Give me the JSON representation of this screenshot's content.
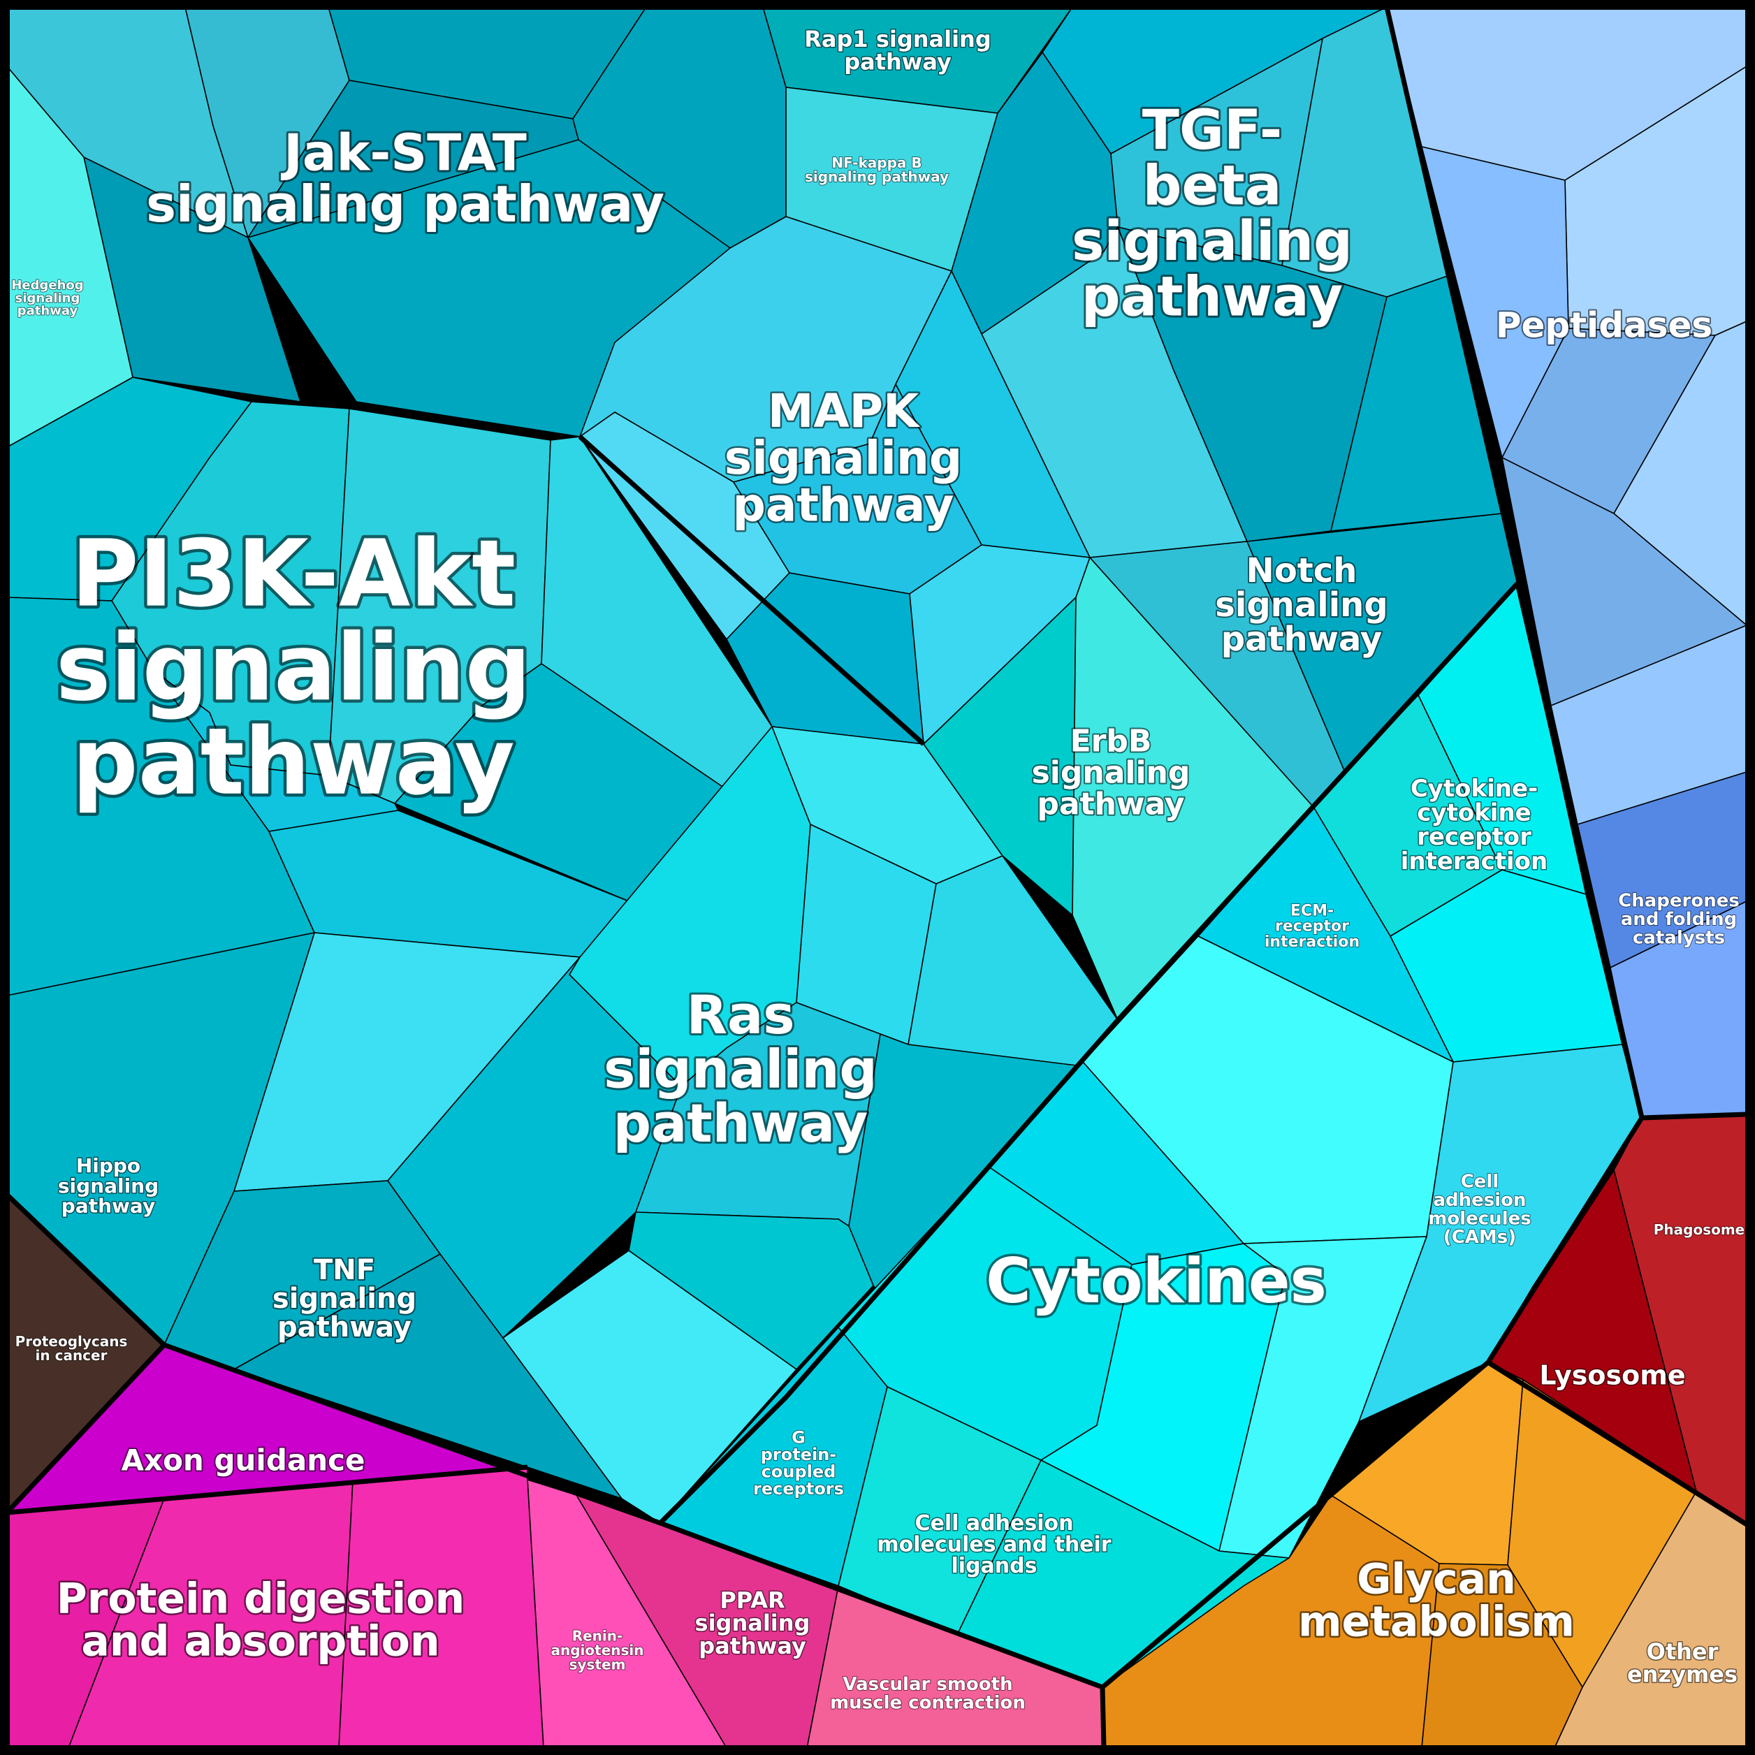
{
  "diagram": {
    "type": "voronoi-treemap",
    "background_color": "#000000",
    "categories": {
      "signaling": {
        "color": "#00b3cc"
      },
      "peptidases": {
        "color": "#9ccaff"
      },
      "chaperones": {
        "color": "#5184e0"
      },
      "lysosome": {
        "color": "#a00010"
      },
      "glycan": {
        "color": "#f0a020"
      },
      "other_enzymes": {
        "color": "#e8b478"
      },
      "vascular": {
        "color": "#f0609a"
      },
      "renin": {
        "color": "#ff50b8"
      },
      "protein_digestion": {
        "color": "#f028a8"
      },
      "axon": {
        "color": "#cc00cc"
      },
      "proteoglycans": {
        "color": "#483028"
      }
    },
    "labels": {
      "jak_stat": [
        "Jak-STAT",
        "signaling pathway"
      ],
      "rap1": [
        "Rap1 signaling",
        "pathway"
      ],
      "nfkb": [
        "NF-kappa B",
        "signaling pathway"
      ],
      "tgf": [
        "TGF-",
        "beta",
        "signaling",
        "pathway"
      ],
      "hedgehog": [
        "Hedgehog",
        "signaling",
        "pathway"
      ],
      "peptidases": [
        "Peptidases"
      ],
      "mapk": [
        "MAPK",
        "signaling",
        "pathway"
      ],
      "pi3k": [
        "PI3K-Akt",
        "signaling",
        "pathway"
      ],
      "notch": [
        "Notch",
        "signaling",
        "pathway"
      ],
      "erbb": [
        "ErbB",
        "signaling",
        "pathway"
      ],
      "cytokine_receptor": [
        "Cytokine-",
        "cytokine",
        "receptor",
        "interaction"
      ],
      "ecm": [
        "ECM-",
        "receptor",
        "interaction"
      ],
      "chaperones": [
        "Chaperones",
        "and folding",
        "catalysts"
      ],
      "ras": [
        "Ras",
        "signaling",
        "pathway"
      ],
      "hippo": [
        "Hippo",
        "signaling",
        "pathway"
      ],
      "cytokines": [
        "Cytokines"
      ],
      "cams": [
        "Cell",
        "adhesion",
        "molecules",
        "(CAMs)"
      ],
      "phagosome": [
        "Phagosome"
      ],
      "tnf": [
        "TNF",
        "signaling",
        "pathway"
      ],
      "proteoglycans": [
        "Proteoglycans",
        "in cancer"
      ],
      "lysosome": [
        "Lysosome"
      ],
      "axon": [
        "Axon guidance"
      ],
      "gpcr": [
        "G",
        "protein-",
        "coupled",
        "receptors"
      ],
      "cell_adhesion_ligands": [
        "Cell adhesion",
        "molecules and their",
        "ligands"
      ],
      "protein_digestion": [
        "Protein digestion",
        "and absorption"
      ],
      "renin": [
        "Renin-",
        "angiotensin",
        "system"
      ],
      "ppar": [
        "PPAR",
        "signaling",
        "pathway"
      ],
      "glycan": [
        "Glycan",
        "metabolism"
      ],
      "vascular": [
        "Vascular smooth",
        "muscle contraction"
      ],
      "other_enzymes": [
        "Other",
        "enzymes"
      ]
    }
  }
}
